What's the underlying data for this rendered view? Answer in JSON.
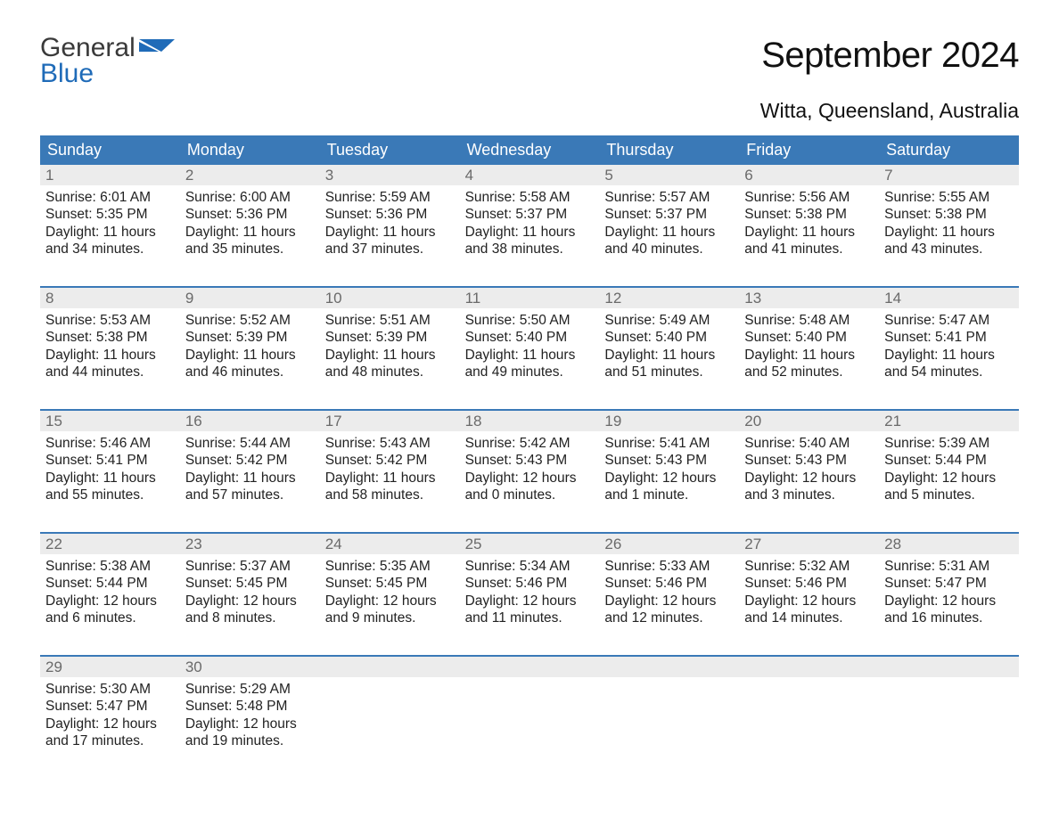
{
  "logo": {
    "line1": "General",
    "line2": "Blue"
  },
  "month_title": "September 2024",
  "location": "Witta, Queensland, Australia",
  "colors": {
    "header_bg": "#3a79b7",
    "header_text": "#ffffff",
    "daynum_bg": "#ececec",
    "daynum_text": "#6a6a6a",
    "body_text": "#222222",
    "week_border": "#3a79b7",
    "logo_blue": "#1f6bb8"
  },
  "weekdays": [
    "Sunday",
    "Monday",
    "Tuesday",
    "Wednesday",
    "Thursday",
    "Friday",
    "Saturday"
  ],
  "weeks": [
    [
      {
        "num": "1",
        "sunrise": "Sunrise: 6:01 AM",
        "sunset": "Sunset: 5:35 PM",
        "daylight": "Daylight: 11 hours and 34 minutes."
      },
      {
        "num": "2",
        "sunrise": "Sunrise: 6:00 AM",
        "sunset": "Sunset: 5:36 PM",
        "daylight": "Daylight: 11 hours and 35 minutes."
      },
      {
        "num": "3",
        "sunrise": "Sunrise: 5:59 AM",
        "sunset": "Sunset: 5:36 PM",
        "daylight": "Daylight: 11 hours and 37 minutes."
      },
      {
        "num": "4",
        "sunrise": "Sunrise: 5:58 AM",
        "sunset": "Sunset: 5:37 PM",
        "daylight": "Daylight: 11 hours and 38 minutes."
      },
      {
        "num": "5",
        "sunrise": "Sunrise: 5:57 AM",
        "sunset": "Sunset: 5:37 PM",
        "daylight": "Daylight: 11 hours and 40 minutes."
      },
      {
        "num": "6",
        "sunrise": "Sunrise: 5:56 AM",
        "sunset": "Sunset: 5:38 PM",
        "daylight": "Daylight: 11 hours and 41 minutes."
      },
      {
        "num": "7",
        "sunrise": "Sunrise: 5:55 AM",
        "sunset": "Sunset: 5:38 PM",
        "daylight": "Daylight: 11 hours and 43 minutes."
      }
    ],
    [
      {
        "num": "8",
        "sunrise": "Sunrise: 5:53 AM",
        "sunset": "Sunset: 5:38 PM",
        "daylight": "Daylight: 11 hours and 44 minutes."
      },
      {
        "num": "9",
        "sunrise": "Sunrise: 5:52 AM",
        "sunset": "Sunset: 5:39 PM",
        "daylight": "Daylight: 11 hours and 46 minutes."
      },
      {
        "num": "10",
        "sunrise": "Sunrise: 5:51 AM",
        "sunset": "Sunset: 5:39 PM",
        "daylight": "Daylight: 11 hours and 48 minutes."
      },
      {
        "num": "11",
        "sunrise": "Sunrise: 5:50 AM",
        "sunset": "Sunset: 5:40 PM",
        "daylight": "Daylight: 11 hours and 49 minutes."
      },
      {
        "num": "12",
        "sunrise": "Sunrise: 5:49 AM",
        "sunset": "Sunset: 5:40 PM",
        "daylight": "Daylight: 11 hours and 51 minutes."
      },
      {
        "num": "13",
        "sunrise": "Sunrise: 5:48 AM",
        "sunset": "Sunset: 5:40 PM",
        "daylight": "Daylight: 11 hours and 52 minutes."
      },
      {
        "num": "14",
        "sunrise": "Sunrise: 5:47 AM",
        "sunset": "Sunset: 5:41 PM",
        "daylight": "Daylight: 11 hours and 54 minutes."
      }
    ],
    [
      {
        "num": "15",
        "sunrise": "Sunrise: 5:46 AM",
        "sunset": "Sunset: 5:41 PM",
        "daylight": "Daylight: 11 hours and 55 minutes."
      },
      {
        "num": "16",
        "sunrise": "Sunrise: 5:44 AM",
        "sunset": "Sunset: 5:42 PM",
        "daylight": "Daylight: 11 hours and 57 minutes."
      },
      {
        "num": "17",
        "sunrise": "Sunrise: 5:43 AM",
        "sunset": "Sunset: 5:42 PM",
        "daylight": "Daylight: 11 hours and 58 minutes."
      },
      {
        "num": "18",
        "sunrise": "Sunrise: 5:42 AM",
        "sunset": "Sunset: 5:43 PM",
        "daylight": "Daylight: 12 hours and 0 minutes."
      },
      {
        "num": "19",
        "sunrise": "Sunrise: 5:41 AM",
        "sunset": "Sunset: 5:43 PM",
        "daylight": "Daylight: 12 hours and 1 minute."
      },
      {
        "num": "20",
        "sunrise": "Sunrise: 5:40 AM",
        "sunset": "Sunset: 5:43 PM",
        "daylight": "Daylight: 12 hours and 3 minutes."
      },
      {
        "num": "21",
        "sunrise": "Sunrise: 5:39 AM",
        "sunset": "Sunset: 5:44 PM",
        "daylight": "Daylight: 12 hours and 5 minutes."
      }
    ],
    [
      {
        "num": "22",
        "sunrise": "Sunrise: 5:38 AM",
        "sunset": "Sunset: 5:44 PM",
        "daylight": "Daylight: 12 hours and 6 minutes."
      },
      {
        "num": "23",
        "sunrise": "Sunrise: 5:37 AM",
        "sunset": "Sunset: 5:45 PM",
        "daylight": "Daylight: 12 hours and 8 minutes."
      },
      {
        "num": "24",
        "sunrise": "Sunrise: 5:35 AM",
        "sunset": "Sunset: 5:45 PM",
        "daylight": "Daylight: 12 hours and 9 minutes."
      },
      {
        "num": "25",
        "sunrise": "Sunrise: 5:34 AM",
        "sunset": "Sunset: 5:46 PM",
        "daylight": "Daylight: 12 hours and 11 minutes."
      },
      {
        "num": "26",
        "sunrise": "Sunrise: 5:33 AM",
        "sunset": "Sunset: 5:46 PM",
        "daylight": "Daylight: 12 hours and 12 minutes."
      },
      {
        "num": "27",
        "sunrise": "Sunrise: 5:32 AM",
        "sunset": "Sunset: 5:46 PM",
        "daylight": "Daylight: 12 hours and 14 minutes."
      },
      {
        "num": "28",
        "sunrise": "Sunrise: 5:31 AM",
        "sunset": "Sunset: 5:47 PM",
        "daylight": "Daylight: 12 hours and 16 minutes."
      }
    ],
    [
      {
        "num": "29",
        "sunrise": "Sunrise: 5:30 AM",
        "sunset": "Sunset: 5:47 PM",
        "daylight": "Daylight: 12 hours and 17 minutes."
      },
      {
        "num": "30",
        "sunrise": "Sunrise: 5:29 AM",
        "sunset": "Sunset: 5:48 PM",
        "daylight": "Daylight: 12 hours and 19 minutes."
      },
      {
        "empty": true
      },
      {
        "empty": true
      },
      {
        "empty": true
      },
      {
        "empty": true
      },
      {
        "empty": true
      }
    ]
  ]
}
